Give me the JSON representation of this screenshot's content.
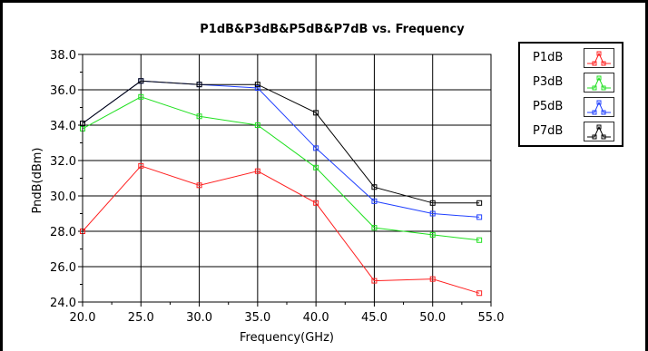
{
  "chart_data": {
    "type": "line",
    "title": "P1dB&P3dB&P5dB&P7dB vs. Frequency",
    "xlabel": "Frequency(GHz)",
    "ylabel": "PndB(dBm)",
    "xlim": [
      20,
      55
    ],
    "ylim": [
      24,
      38
    ],
    "x_ticks": [
      "20.0",
      "25.0",
      "30.0",
      "35.0",
      "40.0",
      "45.0",
      "50.0",
      "55.0"
    ],
    "y_ticks": [
      "24.0",
      "26.0",
      "28.0",
      "30.0",
      "32.0",
      "34.0",
      "36.0",
      "38.0"
    ],
    "grid": true,
    "legend_position": "top-right",
    "x": [
      20,
      25,
      30,
      35,
      40,
      45,
      50,
      54
    ],
    "series": [
      {
        "name": "P1dB",
        "color": "#ff2020",
        "values": [
          28.0,
          31.7,
          30.6,
          31.4,
          29.6,
          25.2,
          25.3,
          24.5
        ]
      },
      {
        "name": "P3dB",
        "color": "#20e020",
        "values": [
          33.8,
          35.6,
          34.5,
          34.0,
          31.6,
          28.2,
          27.8,
          27.5
        ]
      },
      {
        "name": "P5dB",
        "color": "#2040ff",
        "values": [
          34.1,
          36.5,
          36.3,
          36.1,
          32.7,
          29.7,
          29.0,
          28.8
        ]
      },
      {
        "name": "P7dB",
        "color": "#000000",
        "values": [
          34.1,
          36.5,
          36.3,
          36.3,
          34.7,
          30.5,
          29.6,
          29.6
        ]
      }
    ]
  }
}
